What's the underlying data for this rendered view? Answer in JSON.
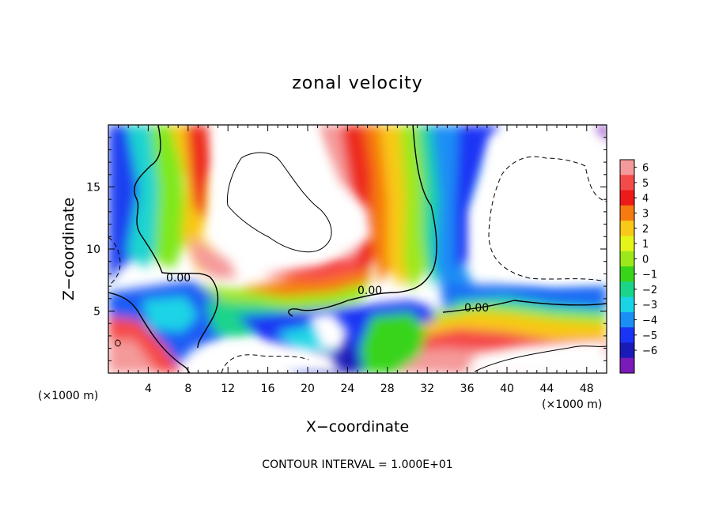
{
  "chart_data": {
    "type": "heatmap",
    "title": "zonal velocity",
    "xlabel": "X−coordinate",
    "ylabel": "Z−coordinate",
    "x_unit_left": "(×1000 m)",
    "x_unit_right": "(×1000 m)",
    "footer": "CONTOUR INTERVAL = 1.000E+01",
    "xlim": [
      0,
      50
    ],
    "ylim": [
      0,
      20
    ],
    "x_ticks": [
      4,
      8,
      12,
      16,
      20,
      24,
      28,
      32,
      36,
      40,
      44,
      48
    ],
    "y_ticks": [
      5,
      10,
      15
    ],
    "colorbar": {
      "levels": [
        6,
        5,
        4,
        3,
        2,
        1,
        0,
        -1,
        -2,
        -3,
        -4,
        -5,
        -6
      ],
      "colors": [
        "#f59a9a",
        "#f54a4a",
        "#ee1a1a",
        "#f77a10",
        "#f9c818",
        "#e5f51a",
        "#9ce81a",
        "#38d41a",
        "#1ad48a",
        "#1ad4e5",
        "#1a8ef5",
        "#1a34f5",
        "#1a1ab8",
        "#7a1ab8"
      ]
    },
    "contour_labels": [
      {
        "text": "0.00",
        "x": 7.5,
        "y": 7.4
      },
      {
        "text": "0.00",
        "x": 25.8,
        "y": 6.6
      },
      {
        "text": "0.00",
        "x": 37.8,
        "y": 5.3
      }
    ]
  }
}
